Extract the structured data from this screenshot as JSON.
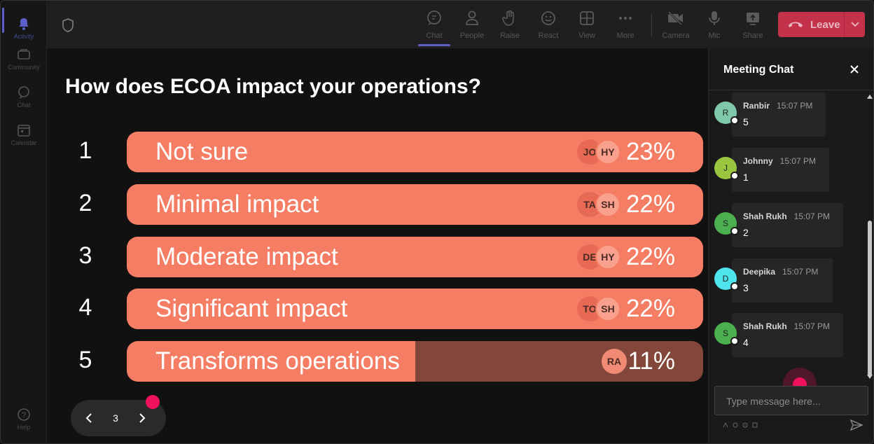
{
  "rail": {
    "items": [
      {
        "label": "Activity",
        "icon": "bell-icon"
      },
      {
        "label": "Community",
        "icon": "community-icon"
      },
      {
        "label": "Chat",
        "icon": "chat-icon"
      },
      {
        "label": "Calendar",
        "icon": "calendar-icon"
      },
      {
        "label": "Help",
        "icon": "help-icon"
      }
    ]
  },
  "toolbar": {
    "chat": "Chat",
    "people": "People",
    "raise": "Raise",
    "react": "React",
    "view": "View",
    "more": "More",
    "camera": "Camera",
    "mic": "Mic",
    "share": "Share",
    "leave": "Leave"
  },
  "poll": {
    "question": "How does ECOA impact your operations?",
    "options": [
      {
        "num": "1",
        "label": "Not sure",
        "pct": "23%",
        "fill": 1.0,
        "avatars": [
          "JO",
          "HY"
        ]
      },
      {
        "num": "2",
        "label": "Minimal impact",
        "pct": "22%",
        "fill": 1.0,
        "avatars": [
          "TA",
          "SH"
        ]
      },
      {
        "num": "3",
        "label": "Moderate impact",
        "pct": "22%",
        "fill": 1.0,
        "avatars": [
          "DE",
          "HY"
        ]
      },
      {
        "num": "4",
        "label": "Significant impact",
        "pct": "22%",
        "fill": 1.0,
        "avatars": [
          "TO",
          "SH"
        ]
      },
      {
        "num": "5",
        "label": "Transforms operations",
        "pct": "11%",
        "fill": 0.5,
        "avatars": [
          "RA"
        ]
      }
    ]
  },
  "pager": {
    "page": "3"
  },
  "chat": {
    "title": "Meeting Chat",
    "messages": [
      {
        "initial": "R",
        "name": "Ranbir",
        "time": "15:07 PM",
        "text": "5",
        "color": "#7fc8a9"
      },
      {
        "initial": "J",
        "name": "Johnny",
        "time": "15:07 PM",
        "text": "1",
        "color": "#9ac53e"
      },
      {
        "initial": "S",
        "name": "Shah Rukh",
        "time": "15:07 PM",
        "text": "2",
        "color": "#4caf50"
      },
      {
        "initial": "D",
        "name": "Deepika",
        "time": "15:07 PM",
        "text": "3",
        "color": "#4fe3ee"
      },
      {
        "initial": "S",
        "name": "Shah Rukh",
        "time": "15:07 PM",
        "text": "4",
        "color": "#4caf50"
      }
    ],
    "placeholder": "Type message here..."
  },
  "colors": {
    "accent": "#5b5fc7",
    "bar": "#f47d63",
    "leave": "#c4314b",
    "pink": "#f0115e"
  }
}
